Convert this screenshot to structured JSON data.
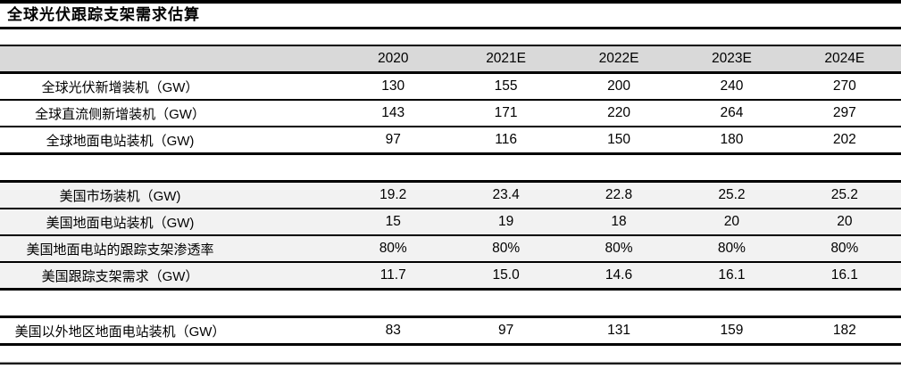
{
  "title": "全球光伏跟踪支架需求估算",
  "colors": {
    "header_bg": "#d9d9d9",
    "shaded_row_bg": "#f2f2f2",
    "border": "#000000",
    "text": "#000000"
  },
  "chart_data": {
    "type": "table",
    "title": "全球光伏跟踪支架需求估算",
    "columns": [
      "",
      "2020",
      "2021E",
      "2022E",
      "2023E",
      "2024E"
    ],
    "rows": [
      {
        "label": "全球光伏新增装机（GW）",
        "values": [
          "130",
          "155",
          "200",
          "240",
          "270"
        ],
        "shaded": false,
        "section": 1
      },
      {
        "label": "全球直流侧新增装机（GW）",
        "values": [
          "143",
          "171",
          "220",
          "264",
          "297"
        ],
        "shaded": false,
        "section": 1
      },
      {
        "label": "全球地面电站装机（GW)",
        "values": [
          "97",
          "116",
          "150",
          "180",
          "202"
        ],
        "shaded": false,
        "section": 1
      },
      {
        "label": "美国市场装机（GW)",
        "values": [
          "19.2",
          "23.4",
          "22.8",
          "25.2",
          "25.2"
        ],
        "shaded": true,
        "section": 2
      },
      {
        "label": "美国地面电站装机（GW)",
        "values": [
          "15",
          "19",
          "18",
          "20",
          "20"
        ],
        "shaded": true,
        "section": 2
      },
      {
        "label": "美国地面电站的跟踪支架渗透率",
        "values": [
          "80%",
          "80%",
          "80%",
          "80%",
          "80%"
        ],
        "shaded": true,
        "section": 2
      },
      {
        "label": "美国跟踪支架需求（GW）",
        "values": [
          "11.7",
          "15.0",
          "14.6",
          "16.1",
          "16.1"
        ],
        "shaded": true,
        "section": 2
      },
      {
        "label": "美国以外地区地面电站装机（GW）",
        "values": [
          "83",
          "97",
          "131",
          "159",
          "182"
        ],
        "shaded": false,
        "section": 3
      }
    ]
  }
}
